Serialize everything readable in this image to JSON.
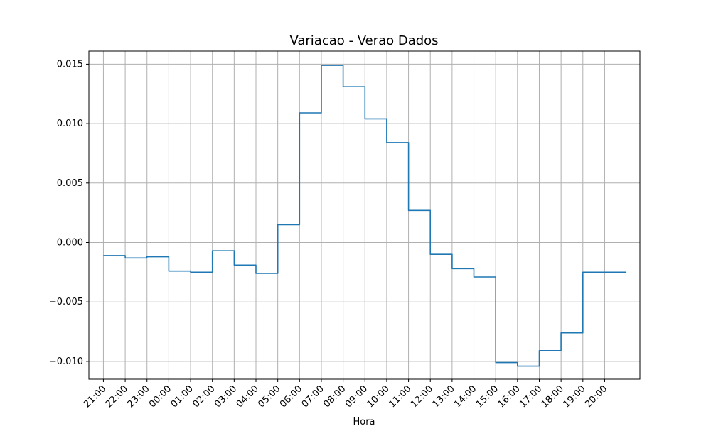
{
  "chart_data": {
    "type": "line",
    "title": "Variacao - Verao Dados",
    "xlabel": "Hora",
    "ylabel": "",
    "x_ticks": [
      "21:00",
      "22:00",
      "23:00",
      "00:00",
      "01:00",
      "02:00",
      "03:00",
      "04:00",
      "05:00",
      "06:00",
      "07:00",
      "08:00",
      "09:00",
      "10:00",
      "11:00",
      "12:00",
      "13:00",
      "14:00",
      "15:00",
      "16:00",
      "17:00",
      "18:00",
      "19:00",
      "20:00"
    ],
    "y_ticks": [
      "−0.010",
      "−0.005",
      "0.000",
      "0.005",
      "0.010",
      "0.015"
    ],
    "y_tick_values": [
      -0.01,
      -0.005,
      0.0,
      0.005,
      0.01,
      0.015
    ],
    "ylim": [
      -0.0115,
      0.0161
    ],
    "xlim": [
      "20:20",
      "21:37"
    ],
    "grid": true,
    "colors": {
      "series": "#1f77b4",
      "grid": "#b0b0b0"
    },
    "series": [
      {
        "step": "post",
        "x": [
          "21:00",
          "22:00",
          "23:00",
          "00:00",
          "01:00",
          "02:00",
          "03:00",
          "04:00",
          "05:00",
          "06:00",
          "07:00",
          "08:00",
          "09:00",
          "10:00",
          "11:00",
          "12:00",
          "13:00",
          "14:00",
          "15:00",
          "16:00",
          "17:00",
          "18:00",
          "19:00",
          "20:00",
          "21:00"
        ],
        "values": [
          -0.0011,
          -0.0013,
          -0.0012,
          -0.0024,
          -0.0025,
          -0.0007,
          -0.0019,
          -0.0026,
          0.0015,
          0.0109,
          0.0149,
          0.0131,
          0.0104,
          0.0084,
          0.0027,
          -0.001,
          -0.0022,
          -0.0029,
          -0.0101,
          -0.0104,
          -0.0091,
          -0.0076,
          -0.0025,
          -0.0025,
          -0.0025
        ]
      }
    ]
  }
}
